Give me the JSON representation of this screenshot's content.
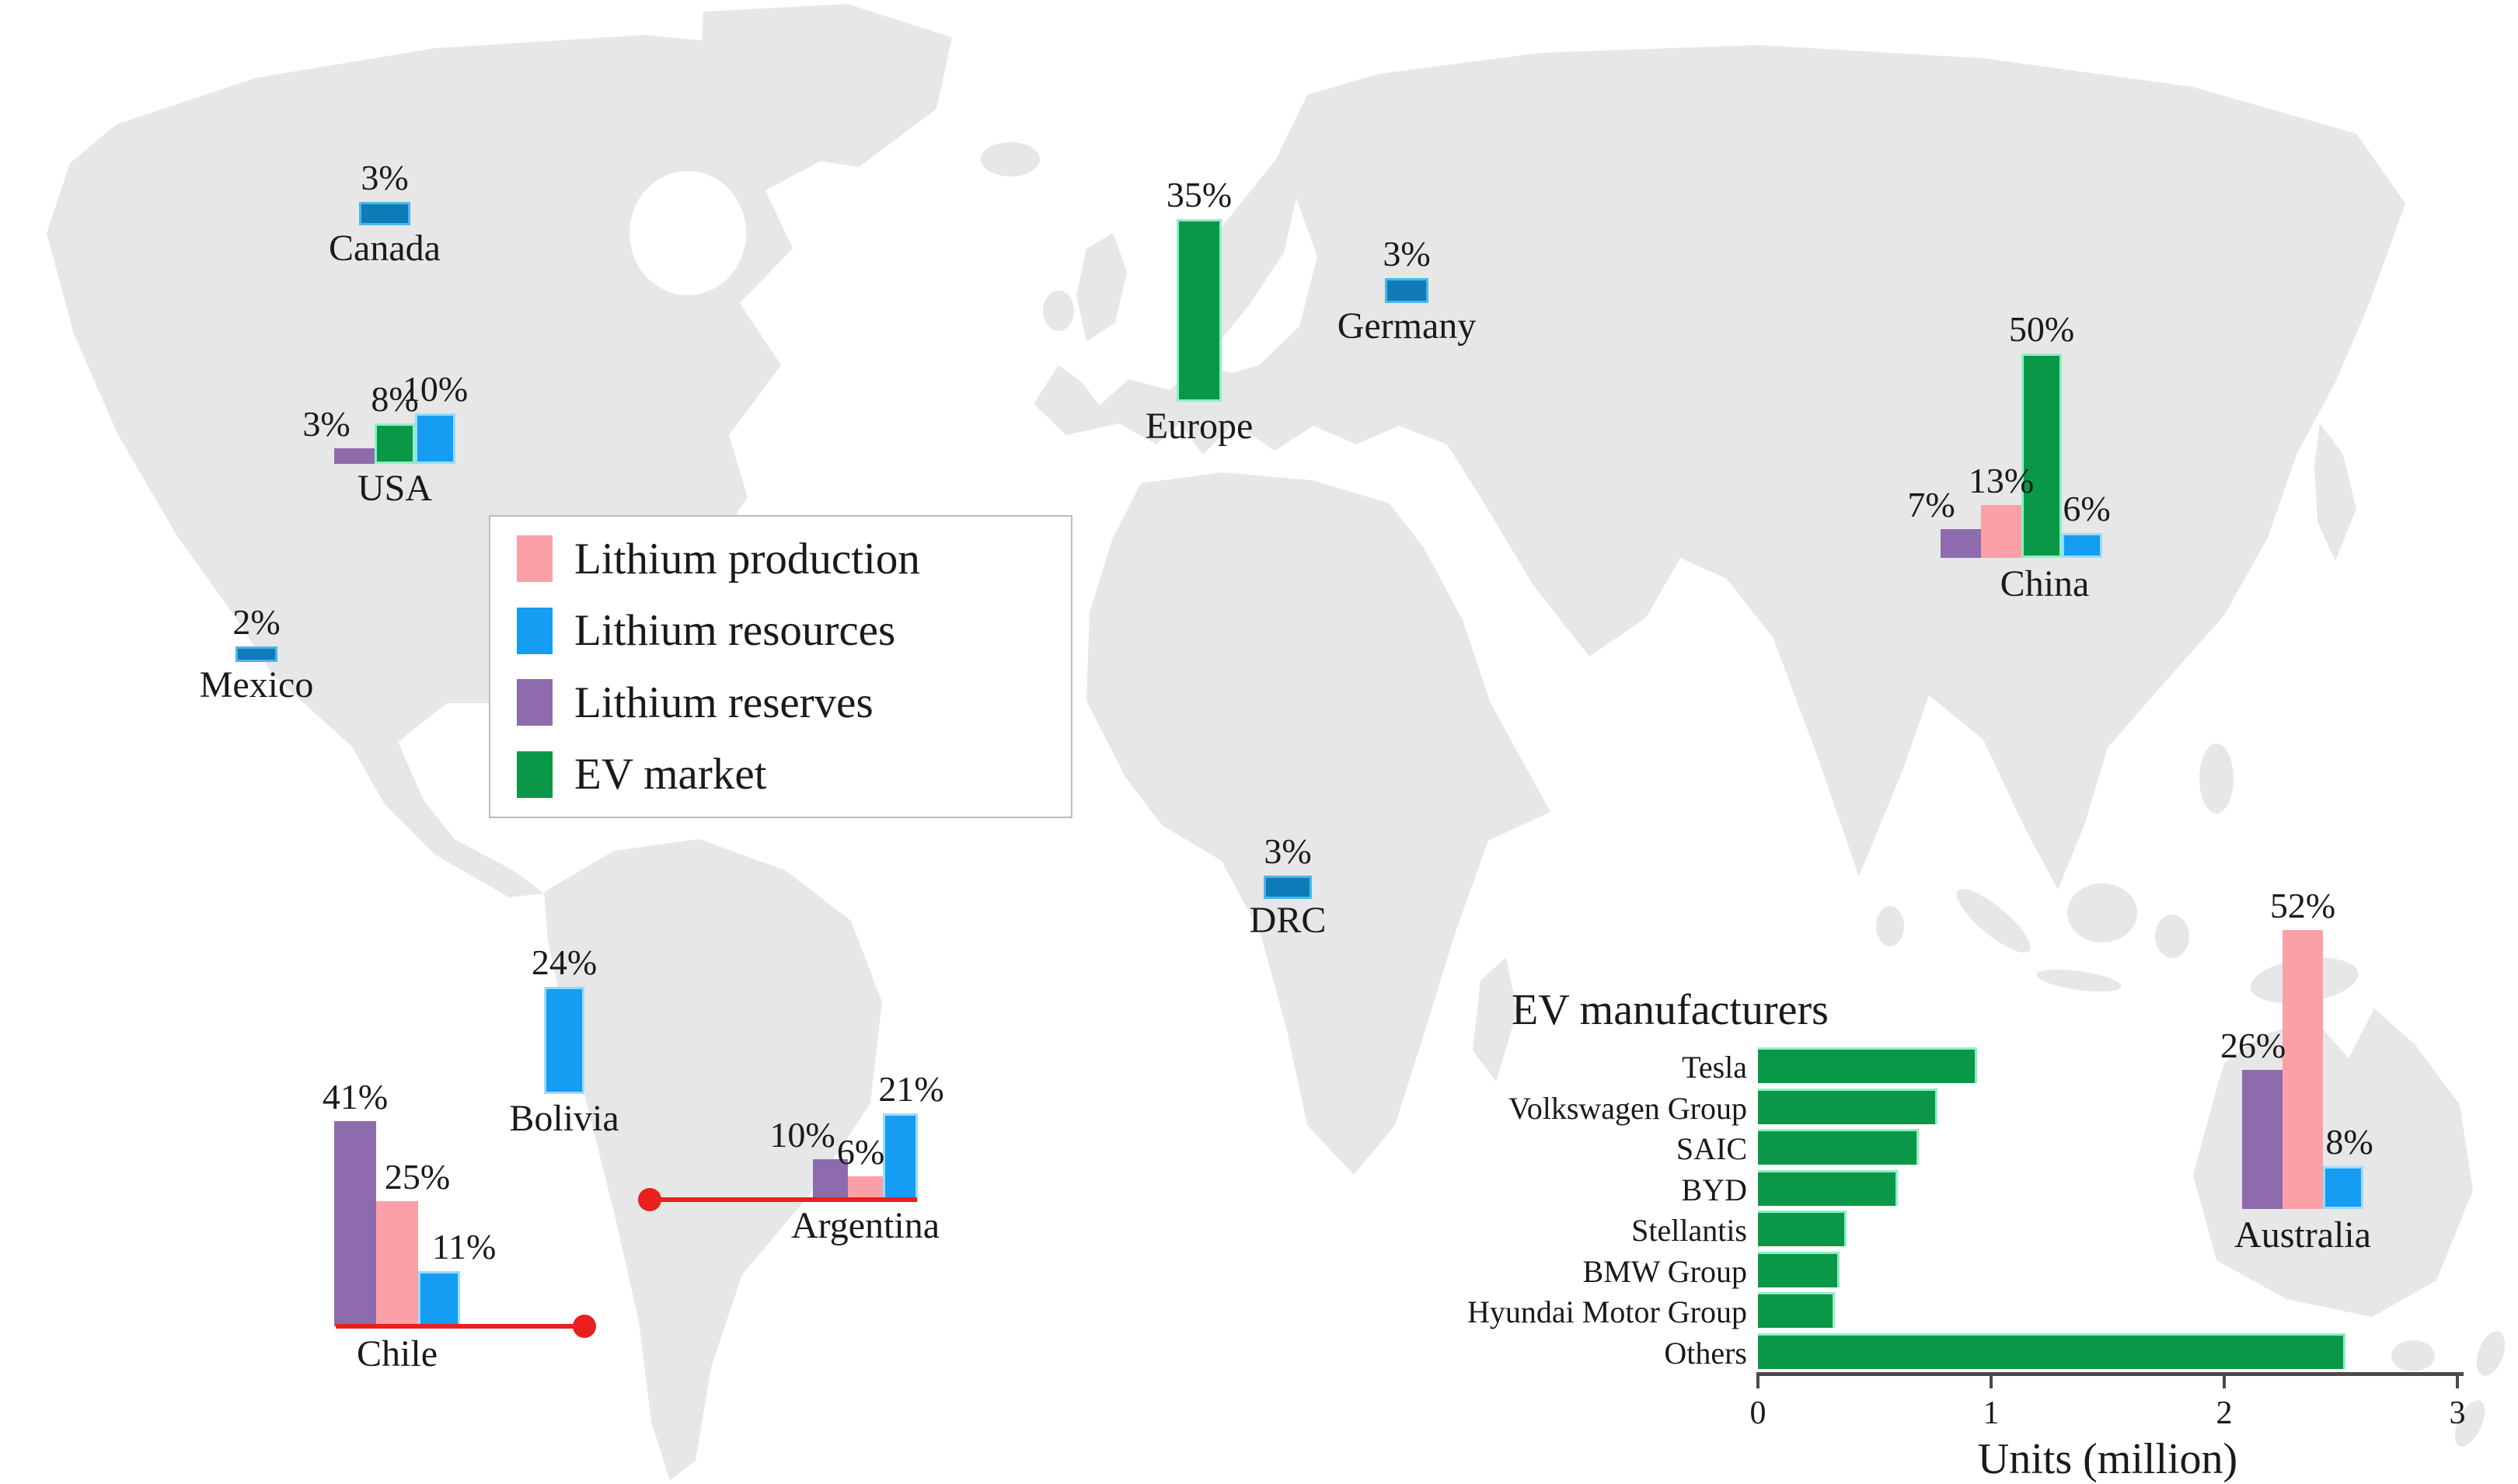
{
  "figure": {
    "land_color": "#e7e7e7",
    "ocean_color": "#ffffff",
    "text_color": "#1a1a1a",
    "axis_color": "#4a4a4a",
    "callout_color": "#E9201D"
  },
  "legend": {
    "items": [
      {
        "id": "production",
        "label": "Lithium production",
        "color": "#FBA0A7"
      },
      {
        "id": "resources",
        "label": "Lithium resources",
        "color": "#149DF2"
      },
      {
        "id": "reserves",
        "label": "Lithium reserves",
        "color": "#8E6BAC"
      },
      {
        "id": "ev_market",
        "label": "EV market",
        "color": "#0A9848"
      }
    ]
  },
  "chart_data": [
    {
      "type": "bar",
      "title": "Lithium production / resources / reserves and EV market shares by country",
      "unit": "%",
      "legend_position": "floating box over North Atlantic / South America",
      "series_colors": {
        "production": "#FBA0A7",
        "resources": "#149DF2",
        "resources_small": "#0F7BB8",
        "reserves": "#8E6BAC",
        "ev_market": "#0A9848"
      },
      "countries": [
        {
          "name": "Canada",
          "small": true,
          "bars": [
            {
              "series": "resources",
              "value": 3,
              "label": "3%"
            }
          ]
        },
        {
          "name": "USA",
          "small": false,
          "bars": [
            {
              "series": "reserves",
              "value": 3,
              "label": "3%"
            },
            {
              "series": "ev_market",
              "value": 8,
              "label": "8%"
            },
            {
              "series": "resources",
              "value": 10,
              "label": "10%"
            }
          ]
        },
        {
          "name": "Mexico",
          "small": true,
          "bars": [
            {
              "series": "resources",
              "value": 2,
              "label": "2%"
            }
          ]
        },
        {
          "name": "Europe",
          "small": false,
          "bars": [
            {
              "series": "ev_market",
              "value": 35,
              "label": "35%"
            }
          ]
        },
        {
          "name": "Germany",
          "small": true,
          "bars": [
            {
              "series": "resources",
              "value": 3,
              "label": "3%"
            }
          ]
        },
        {
          "name": "China",
          "small": false,
          "bars": [
            {
              "series": "reserves",
              "value": 7,
              "label": "7%"
            },
            {
              "series": "production",
              "value": 13,
              "label": "13%"
            },
            {
              "series": "ev_market",
              "value": 50,
              "label": "50%"
            },
            {
              "series": "resources",
              "value": 6,
              "label": "6%"
            }
          ]
        },
        {
          "name": "DRC",
          "small": true,
          "bars": [
            {
              "series": "resources",
              "value": 3,
              "label": "3%"
            }
          ]
        },
        {
          "name": "Bolivia",
          "small": false,
          "bars": [
            {
              "series": "resources",
              "value": 24,
              "label": "24%"
            }
          ]
        },
        {
          "name": "Chile",
          "small": false,
          "callout": true,
          "bars": [
            {
              "series": "reserves",
              "value": 41,
              "label": "41%"
            },
            {
              "series": "production",
              "value": 25,
              "label": "25%"
            },
            {
              "series": "resources",
              "value": 11,
              "label": "11%"
            }
          ]
        },
        {
          "name": "Argentina",
          "small": false,
          "callout": true,
          "bars": [
            {
              "series": "reserves",
              "value": 10,
              "label": "10%"
            },
            {
              "series": "production",
              "value": 6,
              "label": "6%"
            },
            {
              "series": "resources",
              "value": 21,
              "label": "21%"
            }
          ]
        },
        {
          "name": "Australia",
          "small": false,
          "bars": [
            {
              "series": "reserves",
              "value": 26,
              "label": "26%"
            },
            {
              "series": "production",
              "value": 52,
              "label": "52%"
            },
            {
              "series": "resources",
              "value": 8,
              "label": "8%"
            }
          ]
        }
      ]
    },
    {
      "type": "bar",
      "orientation": "horizontal",
      "title": "EV manufacturers",
      "categories": [
        "Tesla",
        "Volkswagen Group",
        "SAIC",
        "BYD",
        "Stellantis",
        "BMW Group",
        "Hyundai Motor Group",
        "Others"
      ],
      "values": [
        0.94,
        0.77,
        0.69,
        0.6,
        0.38,
        0.35,
        0.33,
        2.52
      ],
      "xlabel": "Units (million)",
      "xlim": [
        0,
        3
      ],
      "xticks": [
        0,
        1,
        2,
        3
      ],
      "grid": false,
      "bar_color": "#0A9848"
    }
  ]
}
